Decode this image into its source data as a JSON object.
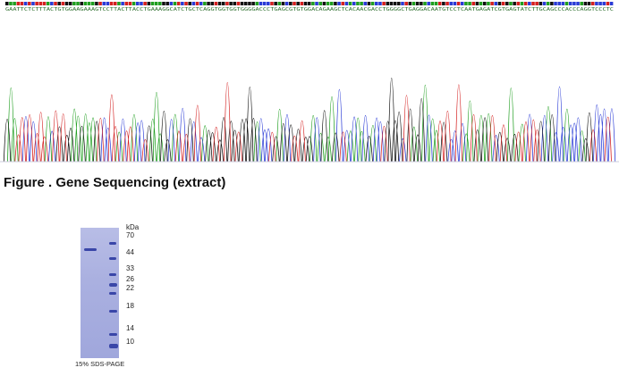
{
  "sequencing": {
    "sequence": "GAATTCTCTTTACTGTGGAAGAAAGTCCTTACTTACCTGAAAGGCATCTGCTCAGGTGGTGGTGGGGACCCTGAGCGTGTGGACAGAAGCTCACAACGACCTGGGGCTGAGGACAATGTCCTCAATGAGATCGTGAGTATCTTGCAGCCCACCCAGGTCCCTC",
    "colors": {
      "A": "#1f9e1f",
      "C": "#2a3bd6",
      "G": "#111111",
      "T": "#d42020"
    }
  },
  "caption": "Figure . Gene Sequencing (extract)",
  "gel": {
    "unit": "kDa",
    "markers": [
      "70",
      "44",
      "33",
      "26",
      "22",
      "18",
      "14",
      "10"
    ],
    "caption": "15% SDS-PAGE",
    "band_color": "#3946a8"
  }
}
